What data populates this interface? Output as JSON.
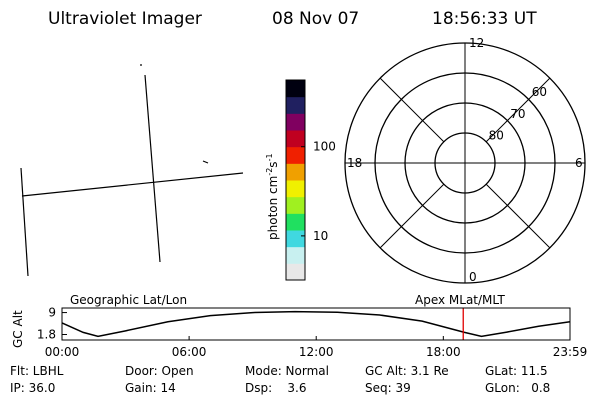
{
  "header": {
    "title": "Ultraviolet Imager",
    "date": "08 Nov 07",
    "time": "18:56:33 UT"
  },
  "colorbar": {
    "label": "photon cm",
    "sup1": "-2",
    "mid": "s",
    "sup2": "-1",
    "lim": [
      3.2,
      560
    ],
    "ticks": [
      10,
      100
    ],
    "log": true,
    "colors": [
      "#e8e8e8",
      "#c8f0f0",
      "#40d8e0",
      "#20e060",
      "#a0f020",
      "#f0f000",
      "#f0a000",
      "#f02000",
      "#c00020",
      "#800060",
      "#202060",
      "#000010"
    ]
  },
  "polar": {
    "mlt_labels": [
      "12",
      "6",
      "0",
      "18"
    ],
    "rings": [
      60,
      70,
      80
    ],
    "lim": [
      50,
      90
    ]
  },
  "chart_data": {
    "type": "line",
    "title_left": "Geographic Lat/Lon",
    "title_right": "Apex MLat/MLT",
    "ylabel": "GC Alt",
    "x": [
      0,
      1,
      1.7,
      3,
      5,
      7,
      9,
      11,
      13,
      15,
      17,
      19,
      19.8,
      21,
      22.5,
      23.98
    ],
    "series": [
      {
        "name": "GC Alt",
        "color": "#000000",
        "values": [
          5.6,
          2.5,
          1.2,
          3.0,
          6.0,
          8.0,
          9.0,
          9.3,
          9.1,
          8.2,
          6.2,
          2.5,
          1.2,
          2.6,
          4.5,
          6.0
        ]
      }
    ],
    "marker_x": 18.94,
    "marker_color": "#e00000",
    "xlim": [
      0,
      23.98
    ],
    "ylim": [
      0,
      10.5
    ],
    "xticks": [
      {
        "value": 0,
        "label": "00:00"
      },
      {
        "value": 6,
        "label": "06:00"
      },
      {
        "value": 12,
        "label": "12:00"
      },
      {
        "value": 18,
        "label": "18:00"
      },
      {
        "value": 23.98,
        "label": "23:59"
      }
    ],
    "yticks": [
      1.8,
      9.0
    ]
  },
  "footer": {
    "rows": [
      [
        "Flt: LBHL",
        "Door: Open",
        "Mode: Normal",
        "GC Alt: 3.1 Re",
        "GLat: 11.5"
      ],
      [
        "IP: 36.0",
        "Gain: 14",
        "Dsp:    3.6",
        "Seq: 39",
        "GLon:   0.8"
      ]
    ]
  }
}
